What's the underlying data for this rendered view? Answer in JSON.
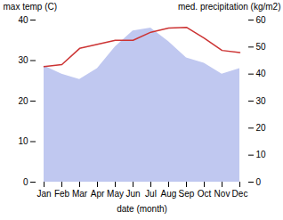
{
  "chart_data": {
    "type": "line",
    "categories": [
      "Jan",
      "Feb",
      "Mar",
      "Apr",
      "May",
      "Jun",
      "Jul",
      "Aug",
      "Sep",
      "Oct",
      "Nov",
      "Dec"
    ],
    "xlabel": "date (month)",
    "ylabel": "max temp (C)",
    "y2label": "med. precipitation (kg/m2)",
    "ylim": [
      0,
      40
    ],
    "yticks": [
      0,
      10,
      20,
      30,
      40
    ],
    "y2lim": [
      0,
      60
    ],
    "y2ticks": [
      0,
      10,
      20,
      30,
      40,
      50,
      60
    ],
    "grid": false,
    "series": [
      {
        "type": "area",
        "axis": "y2",
        "color": "#c0c8f0",
        "values": [
          43,
          40,
          38,
          42,
          50,
          56,
          57,
          52,
          46,
          44,
          40,
          42
        ]
      },
      {
        "type": "line",
        "color": "#cc3333",
        "values": [
          28.5,
          29.0,
          33.0,
          34.0,
          35.0,
          35.0,
          37.0,
          38.0,
          38.2,
          35.5,
          32.5,
          32.0
        ]
      }
    ]
  }
}
